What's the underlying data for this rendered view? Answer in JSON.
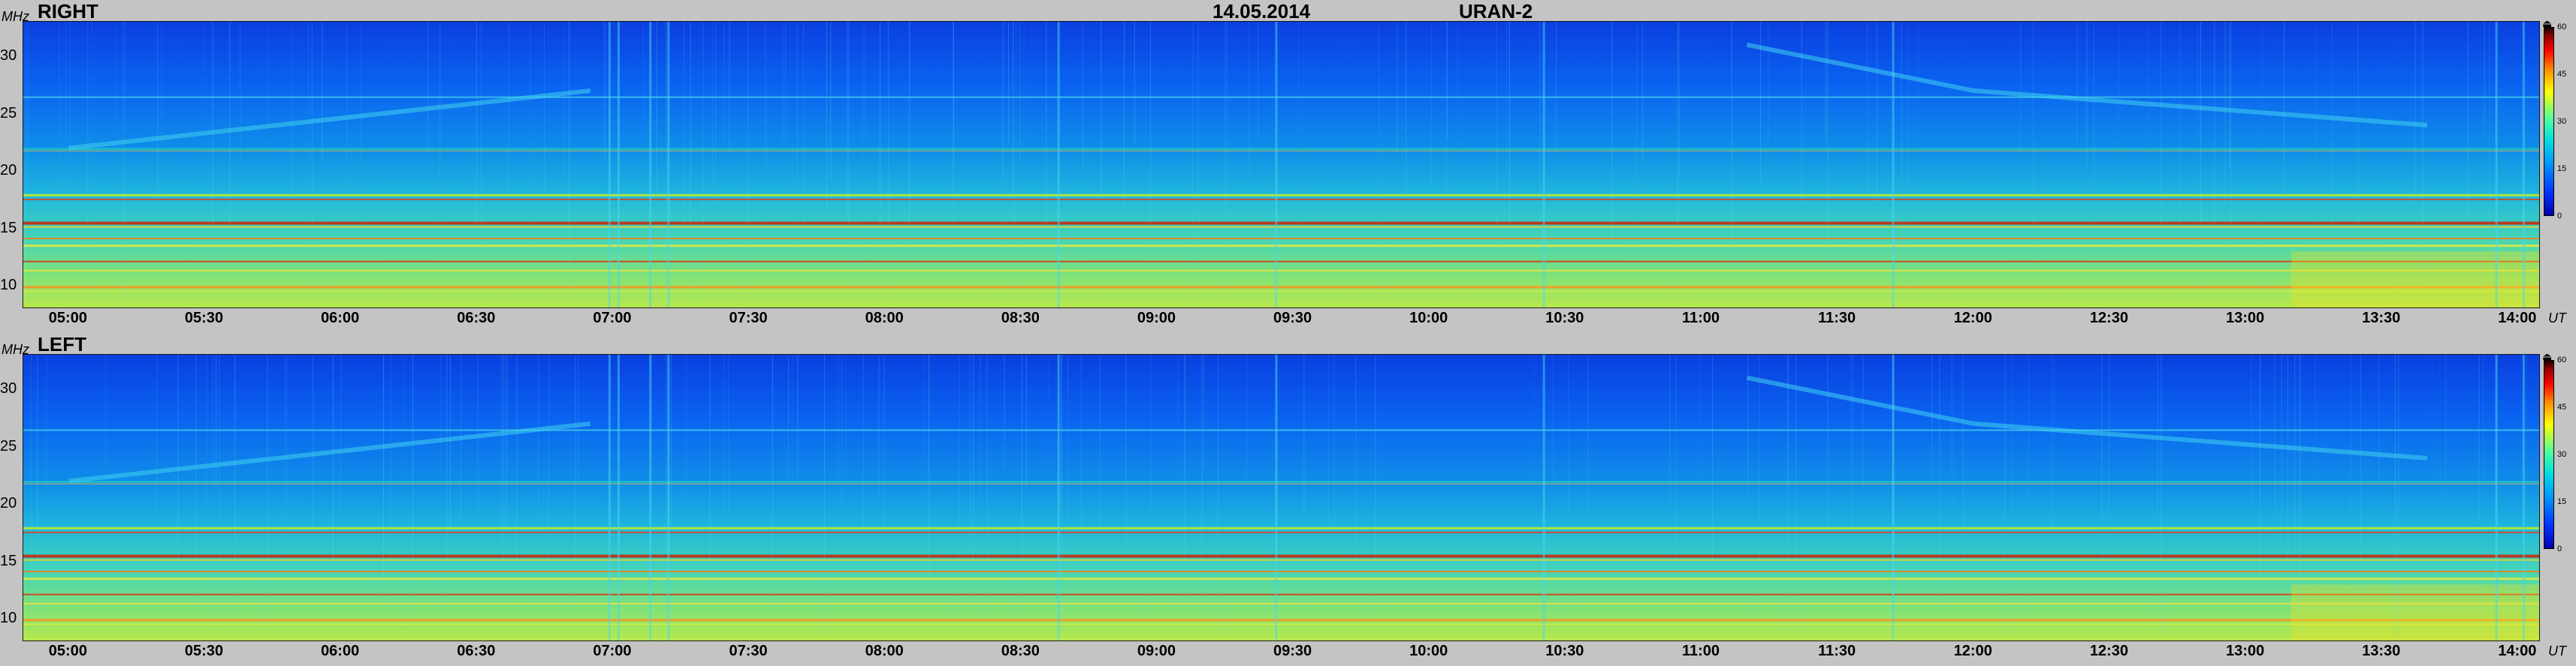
{
  "header": {
    "date": "14.05.2014",
    "instrument": "URAN-2"
  },
  "axis_units": {
    "y": "MHz",
    "x": "UT"
  },
  "colorbar": {
    "ticks": [
      "0",
      "15",
      "30",
      "45",
      "60"
    ],
    "icon": "db-icon",
    "colors": [
      "#0000a8",
      "#0033ff",
      "#0099ff",
      "#00dddd",
      "#55ff99",
      "#ffff00",
      "#ff8800",
      "#ff0000",
      "#880000"
    ]
  },
  "chart_data": [
    {
      "type": "heatmap",
      "title": "RIGHT",
      "xlabel": "UT",
      "ylabel": "MHz",
      "x_ticks": [
        "05:00",
        "05:30",
        "06:00",
        "06:30",
        "07:00",
        "07:30",
        "08:00",
        "08:30",
        "09:00",
        "09:30",
        "10:00",
        "10:30",
        "11:00",
        "11:30",
        "12:00",
        "12:30",
        "13:00",
        "13:30",
        "14:00"
      ],
      "y_ticks": [
        10,
        15,
        20,
        25,
        30
      ],
      "xlim": [
        "04:50",
        "14:05"
      ],
      "ylim": [
        8,
        33
      ],
      "colorbar_range": [
        0,
        60
      ]
    },
    {
      "type": "heatmap",
      "title": "LEFT",
      "xlabel": "UT",
      "ylabel": "MHz",
      "x_ticks": [
        "05:00",
        "05:30",
        "06:00",
        "06:30",
        "07:00",
        "07:30",
        "08:00",
        "08:30",
        "09:00",
        "09:30",
        "10:00",
        "10:30",
        "11:00",
        "11:30",
        "12:00",
        "12:30",
        "13:00",
        "13:30",
        "14:00"
      ],
      "y_ticks": [
        10,
        15,
        20,
        25,
        30
      ],
      "xlim": [
        "04:50",
        "14:05"
      ],
      "ylim": [
        8,
        33
      ],
      "colorbar_range": [
        0,
        60
      ]
    }
  ]
}
